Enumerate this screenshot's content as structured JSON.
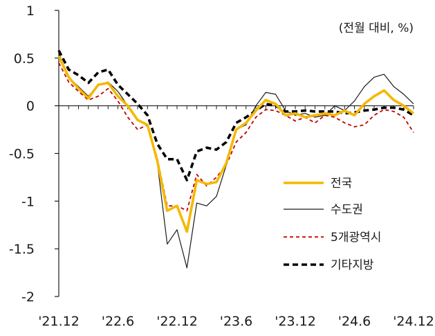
{
  "unit_label": "(전월 대비, %)",
  "chart_data": {
    "type": "line",
    "title": "",
    "xlabel": "",
    "ylabel": "",
    "ylim": [
      -2,
      1
    ],
    "yticks": [
      1,
      0.5,
      0,
      -0.5,
      -1,
      -1.5,
      -2
    ],
    "ytick_labels": [
      "1",
      "0.5",
      "0",
      "-0.5",
      "-1",
      "-1.5",
      "-2"
    ],
    "xtick_labels": [
      "'21.12",
      "'22.6",
      "'22.12",
      "'23.6",
      "'23.12",
      "'24.6",
      "'24.12"
    ],
    "xtick_index": [
      0,
      6,
      12,
      18,
      24,
      30,
      36
    ],
    "x": [
      "'21.12",
      "'22.1",
      "'22.2",
      "'22.3",
      "'22.4",
      "'22.5",
      "'22.6",
      "'22.7",
      "'22.8",
      "'22.9",
      "'22.10",
      "'22.11",
      "'22.12",
      "'23.1",
      "'23.2",
      "'23.3",
      "'23.4",
      "'23.5",
      "'23.6",
      "'23.7",
      "'23.8",
      "'23.9",
      "'23.10",
      "'23.11",
      "'23.12",
      "'24.1",
      "'24.2",
      "'24.3",
      "'24.4",
      "'24.5",
      "'24.6",
      "'24.7",
      "'24.8",
      "'24.9",
      "'24.10",
      "'24.11",
      "'24.12"
    ],
    "grid": false,
    "legend_position": "right",
    "series": [
      {
        "name": "전국",
        "color": "#F5B800",
        "style": "solid-thick",
        "values": [
          0.52,
          0.3,
          0.18,
          0.08,
          0.22,
          0.24,
          0.1,
          0.0,
          -0.15,
          -0.2,
          -0.58,
          -1.1,
          -1.05,
          -1.32,
          -0.78,
          -0.82,
          -0.8,
          -0.6,
          -0.25,
          -0.18,
          -0.05,
          0.06,
          0.02,
          -0.1,
          -0.08,
          -0.12,
          -0.1,
          -0.08,
          -0.1,
          -0.05,
          -0.1,
          0.02,
          0.1,
          0.16,
          0.06,
          0.0,
          -0.08
        ]
      },
      {
        "name": "수도권",
        "color": "#1a1a1a",
        "style": "solid-thin",
        "values": [
          0.55,
          0.3,
          0.2,
          0.1,
          0.22,
          0.25,
          0.15,
          0.0,
          -0.15,
          -0.2,
          -0.6,
          -1.45,
          -1.3,
          -1.7,
          -1.02,
          -1.05,
          -0.95,
          -0.62,
          -0.25,
          -0.2,
          0.0,
          0.14,
          0.12,
          -0.05,
          -0.1,
          -0.08,
          -0.12,
          -0.1,
          0.0,
          -0.05,
          0.05,
          0.2,
          0.3,
          0.33,
          0.2,
          0.12,
          0.02
        ]
      },
      {
        "name": "5개광역시",
        "color": "#C00000",
        "style": "dashed-thin",
        "values": [
          0.45,
          0.25,
          0.15,
          0.06,
          0.1,
          0.18,
          0.05,
          -0.12,
          -0.25,
          -0.2,
          -0.55,
          -1.05,
          -1.05,
          -1.1,
          -0.72,
          -0.84,
          -0.75,
          -0.62,
          -0.38,
          -0.28,
          -0.12,
          -0.04,
          -0.05,
          -0.1,
          -0.16,
          -0.12,
          -0.18,
          -0.1,
          -0.12,
          -0.18,
          -0.22,
          -0.2,
          -0.1,
          -0.04,
          -0.06,
          -0.12,
          -0.28
        ]
      },
      {
        "name": "기타지방",
        "color": "#000000",
        "style": "dashed-thick",
        "values": [
          0.58,
          0.38,
          0.32,
          0.24,
          0.35,
          0.38,
          0.22,
          0.12,
          0.02,
          -0.1,
          -0.4,
          -0.56,
          -0.56,
          -0.78,
          -0.48,
          -0.44,
          -0.46,
          -0.38,
          -0.18,
          -0.12,
          -0.05,
          0.02,
          0.0,
          -0.06,
          -0.06,
          -0.05,
          -0.06,
          -0.06,
          -0.06,
          -0.08,
          -0.07,
          -0.05,
          -0.04,
          -0.02,
          -0.02,
          -0.04,
          -0.1
        ]
      }
    ]
  }
}
